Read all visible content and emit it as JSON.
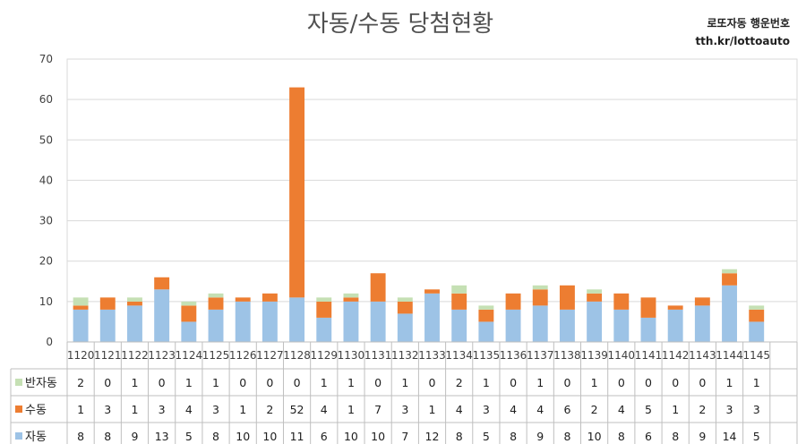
{
  "chart_data": {
    "type": "bar",
    "stacked": true,
    "title": "자동/수동 당첨현황",
    "categories": [
      "1120",
      "1121",
      "1122",
      "1123",
      "1124",
      "1125",
      "1126",
      "1127",
      "1128",
      "1129",
      "1130",
      "1131",
      "1132",
      "1133",
      "1134",
      "1135",
      "1136",
      "1137",
      "1138",
      "1139",
      "1140",
      "1141",
      "1142",
      "1143",
      "1144",
      "1145"
    ],
    "series": [
      {
        "name": "자동",
        "color": "#9dc3e6",
        "values": [
          8,
          8,
          9,
          13,
          5,
          8,
          10,
          10,
          11,
          6,
          10,
          10,
          7,
          12,
          8,
          5,
          8,
          9,
          8,
          10,
          8,
          6,
          8,
          9,
          14,
          5
        ]
      },
      {
        "name": "수동",
        "color": "#ed7d31",
        "values": [
          1,
          3,
          1,
          3,
          4,
          3,
          1,
          2,
          52,
          4,
          1,
          7,
          3,
          1,
          4,
          3,
          4,
          4,
          6,
          2,
          4,
          5,
          1,
          2,
          3,
          3
        ]
      },
      {
        "name": "반자동",
        "color": "#c5e0b4",
        "values": [
          2,
          0,
          1,
          0,
          1,
          1,
          0,
          0,
          0,
          1,
          1,
          0,
          1,
          0,
          2,
          1,
          0,
          1,
          0,
          1,
          0,
          0,
          0,
          0,
          1,
          1
        ]
      }
    ],
    "table_rows": [
      "반자동",
      "수동",
      "자동"
    ],
    "y_ticks": [
      0,
      10,
      20,
      30,
      40,
      50,
      60,
      70
    ],
    "ylim": [
      0,
      70
    ],
    "grid": true,
    "legend": "data-table"
  },
  "brand": {
    "name": "로또자동 행운번호",
    "url": "tth.kr/lottoauto"
  }
}
